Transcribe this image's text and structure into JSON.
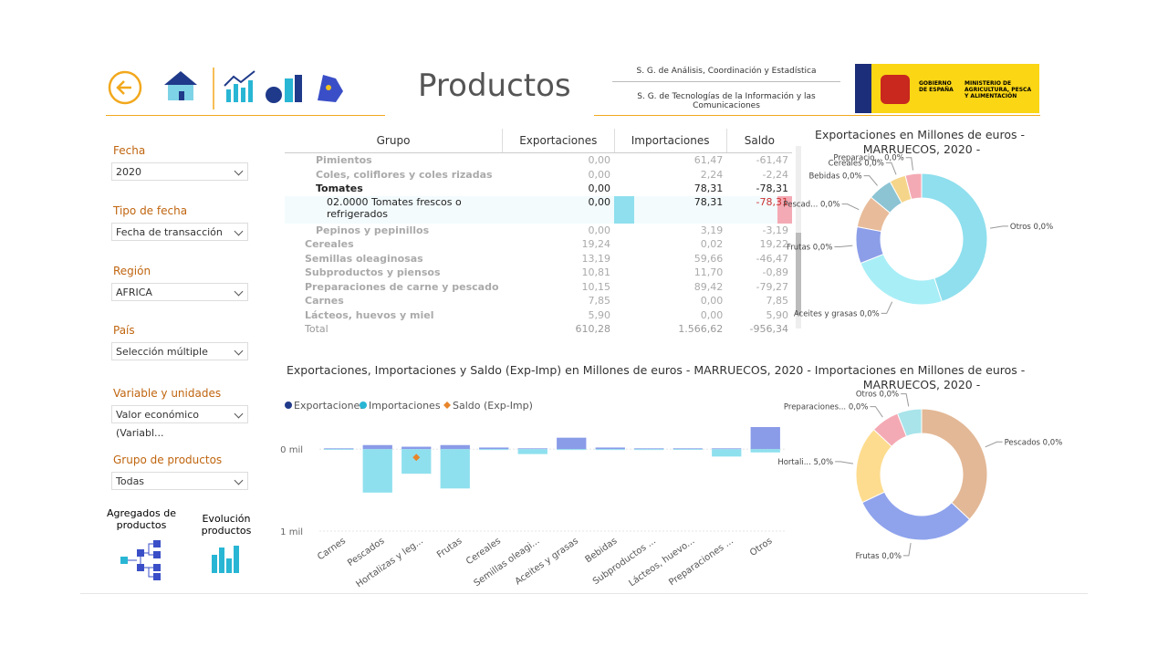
{
  "header": {
    "title": "Productos",
    "org_lines": [
      "S. G. de Análisis, Coordinación y Estadística",
      "S. G. de Tecnologías de la Información y las Comunicaciones"
    ],
    "gov": "GOBIERNO DE ESPAÑA",
    "ministry": "MINISTERIO DE AGRICULTURA, PESCA Y ALIMENTACIÓN"
  },
  "filters": [
    {
      "label": "Fecha",
      "value": "2020"
    },
    {
      "label": "Tipo de fecha",
      "value": "Fecha de transacción"
    },
    {
      "label": "Región",
      "value": "AFRICA"
    },
    {
      "label": "País",
      "value": "Selección múltiple"
    },
    {
      "label": "Variable y unidades",
      "value": "Valor económico (Variabl..."
    },
    {
      "label": "Grupo de productos",
      "value": "Todas"
    }
  ],
  "nav": [
    "Agregados de productos",
    "Evolución productos"
  ],
  "table": {
    "columns": [
      "Grupo",
      "Exportaciones",
      "Importaciones",
      "Saldo"
    ],
    "rows": [
      [
        "Pimientos",
        "0,00",
        "61,47",
        "-61,47"
      ],
      [
        "Coles, coliflores y coles rizadas",
        "0,00",
        "2,24",
        "-2,24"
      ],
      [
        "Tomates",
        "0,00",
        "78,31",
        "-78,31"
      ],
      [
        "02.0000 Tomates frescos o refrigerados",
        "0,00",
        "78,31",
        "-78,31"
      ],
      [
        "Pepinos y pepinillos",
        "0,00",
        "3,19",
        "-3,19"
      ],
      [
        "Cereales",
        "19,24",
        "0,02",
        "19,22"
      ],
      [
        "Semillas oleaginosas",
        "13,19",
        "59,66",
        "-46,47"
      ],
      [
        "Subproductos y piensos",
        "10,81",
        "11,70",
        "-0,89"
      ],
      [
        "Preparaciones de carne y pescado",
        "10,15",
        "89,42",
        "-79,27"
      ],
      [
        "Carnes",
        "7,85",
        "0,00",
        "7,85"
      ],
      [
        "Lácteos, huevos y miel",
        "5,90",
        "0,00",
        "5,90"
      ]
    ],
    "total": [
      "Total",
      "610,28",
      "1.566,62",
      "-956,34"
    ]
  },
  "chart_data": [
    {
      "type": "bar",
      "title": "Exportaciones, Importaciones y Saldo (Exp-Imp) en Millones de euros - MARRUECOS, 2020 -",
      "categories": [
        "Carnes",
        "Pescados",
        "Hortalizas y leg...",
        "Frutas",
        "Cereales",
        "Semillas oleagi...",
        "Aceites y grasas",
        "Bebidas",
        "Subproductos ...",
        "Lácteos, huevo...",
        "Preparaciones ...",
        "Otros"
      ],
      "series": [
        {
          "name": "Exportaciones",
          "color": "#8a9be8",
          "values": [
            0.01,
            0.05,
            0.03,
            0.05,
            0.02,
            0.01,
            0.14,
            0.02,
            0.01,
            0.01,
            0.01,
            0.27
          ]
        },
        {
          "name": "Importaciones",
          "color": "#8fe0ee",
          "values": [
            0,
            -0.53,
            -0.3,
            -0.48,
            -0.01,
            -0.06,
            -0.01,
            -0.01,
            -0.01,
            0,
            -0.09,
            -0.04
          ]
        },
        {
          "name": "Saldo (Exp-Imp)",
          "color": "#e8852b",
          "values": [
            null,
            null,
            -0.1,
            null,
            null,
            null,
            null,
            null,
            null,
            null,
            null,
            null
          ]
        }
      ],
      "ylim": [
        -1,
        0.27
      ],
      "yticks": [
        {
          "value": 0,
          "label": "0 mil"
        },
        {
          "value": -1,
          "label": "1 mil"
        }
      ],
      "grid": true
    },
    {
      "type": "pie",
      "donut": true,
      "title": "Exportaciones en Millones de euros - MARRUECOS, 2020 -",
      "labels": [
        "Otros 0,0%",
        "Aceites y grasas 0,0%",
        "Frutas 0,0%",
        "Pescad... 0,0%",
        "Bebidas 0,0%",
        "Cereales 0,0%",
        "Preparacio... 0,0%"
      ],
      "values": [
        45,
        24,
        9,
        8,
        6,
        4,
        4
      ],
      "colors": [
        "#8fdfee",
        "#a8eef7",
        "#8c9ee8",
        "#e8bc9a",
        "#8cc4d4",
        "#f5d58a",
        "#f4aab4"
      ]
    },
    {
      "type": "pie",
      "donut": true,
      "title": "Importaciones en Millones de euros - MARRUECOS, 2020 -",
      "labels": [
        "Pescados 0,0%",
        "Frutas 0,0%",
        "Hortali... 5,0%",
        "Preparaciones... 0,0%",
        "Otros 0,0%"
      ],
      "values": [
        37,
        31,
        19,
        7,
        6
      ],
      "colors": [
        "#e3b896",
        "#8fa3ec",
        "#fddc8f",
        "#f4aab4",
        "#a8e4ea"
      ]
    }
  ]
}
